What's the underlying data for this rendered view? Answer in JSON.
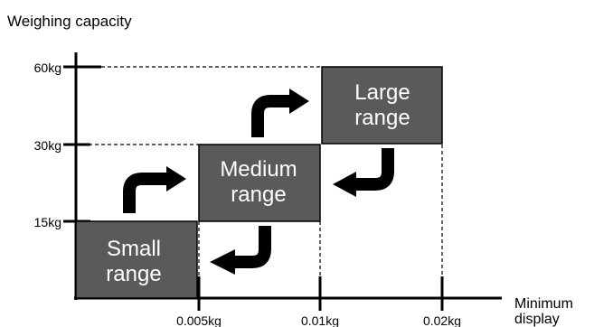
{
  "y_axis_label": "Weighing capacity",
  "x_axis_label": [
    "Minimum",
    "display"
  ],
  "y_ticks": [
    "15kg",
    "30kg",
    "60kg"
  ],
  "x_ticks": [
    "0.005kg",
    "0.01kg",
    "0.02kg"
  ],
  "ranges": [
    {
      "lines": [
        "Small",
        "range"
      ]
    },
    {
      "lines": [
        "Medium",
        "range"
      ]
    },
    {
      "lines": [
        "Large",
        "range"
      ]
    }
  ],
  "colors": {
    "box_fill": "#5a5a5a",
    "box_text": "#ffffff",
    "axis": "#000000"
  },
  "arrow_icons": [
    "curved-up-right-arrow-icon",
    "curved-down-left-arrow-icon"
  ]
}
